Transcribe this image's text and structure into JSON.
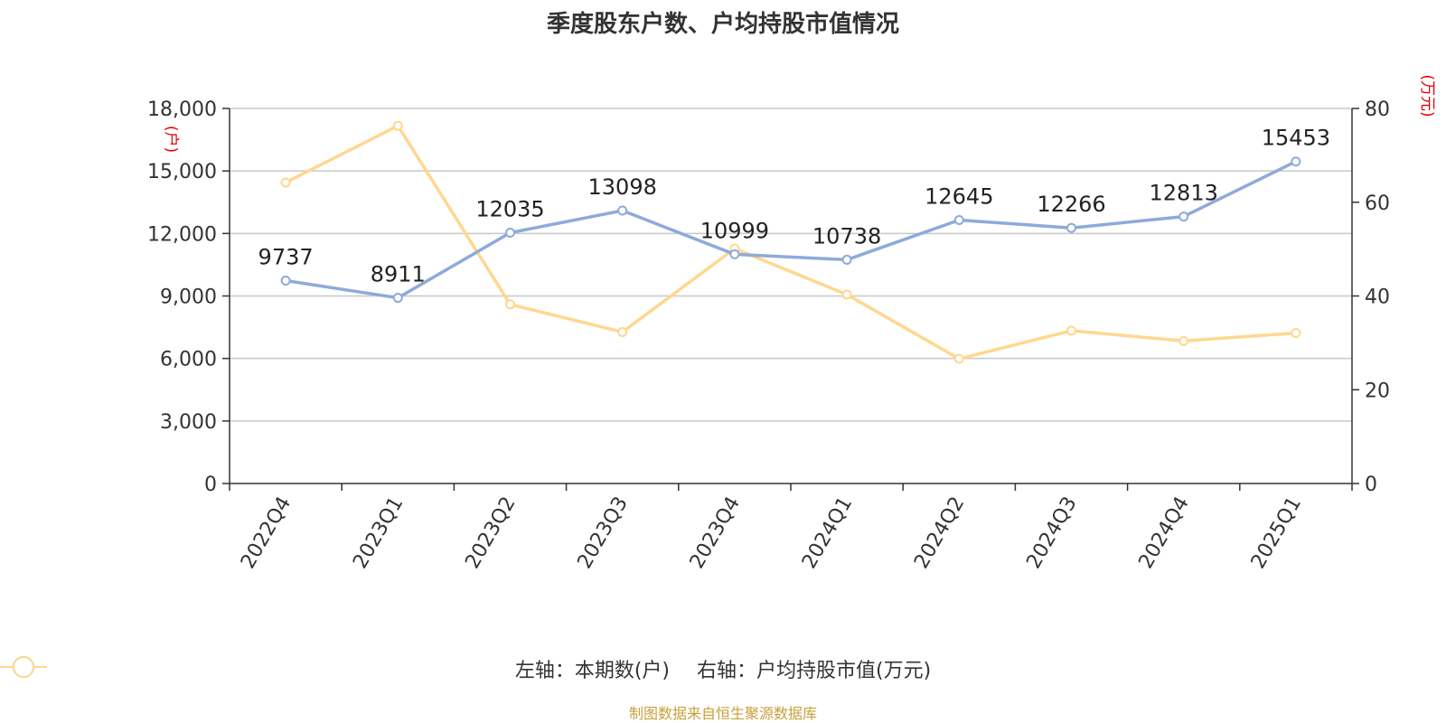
{
  "title": "季度股东户数、户均持股市值情况",
  "source": "制图数据来自恒生聚源数据库",
  "colors": {
    "left": "#8eaadb",
    "right": "#ffd78f",
    "unit": "#e00000"
  },
  "chart_data": {
    "type": "line",
    "categories": [
      "2022Q4",
      "2023Q1",
      "2023Q2",
      "2023Q3",
      "2023Q4",
      "2024Q1",
      "2024Q2",
      "2024Q3",
      "2024Q4",
      "2025Q1"
    ],
    "y_left": {
      "unit": "(户)",
      "ylim": [
        0,
        18000
      ],
      "ticks": [
        "0",
        "3,000",
        "6,000",
        "9,000",
        "12,000",
        "15,000",
        "18,000"
      ]
    },
    "y_right": {
      "unit": "(万元)",
      "ylim": [
        0,
        80
      ],
      "ticks": [
        "0",
        "20",
        "40",
        "60",
        "80"
      ]
    },
    "series": [
      {
        "name": "左轴：本期数(户)",
        "axis": "left",
        "values": [
          9737,
          8911,
          12035,
          13098,
          10999,
          10738,
          12645,
          12266,
          12813,
          15453
        ],
        "labels": [
          "9737",
          "8911",
          "12035",
          "13098",
          "10999",
          "10738",
          "12645",
          "12266",
          "12813",
          "15453"
        ]
      },
      {
        "name": "右轴：户均持股市值(万元)",
        "axis": "right",
        "values": [
          64.2,
          76.3,
          38.2,
          32.3,
          50.1,
          40.3,
          26.6,
          32.6,
          30.4,
          32.1
        ]
      }
    ],
    "grid": true,
    "legend": "bottom-center"
  }
}
